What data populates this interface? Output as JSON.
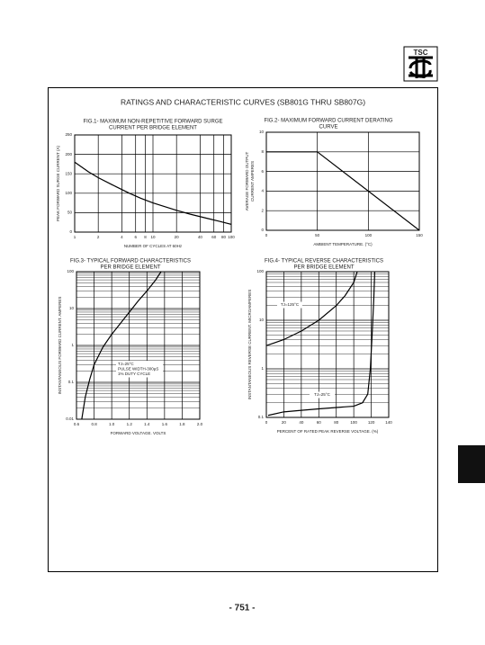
{
  "logo": "TSC",
  "title": "RATINGS AND CHARACTERISTIC CURVES (SB801G THRU SB807G)",
  "page_number": "- 751 -",
  "chart_data": [
    {
      "type": "line",
      "title": [
        "FIG.1- MAXIMUM NON-REPETITIVE FORWARD SURGE",
        "CURRENT PER BRIDGE ELEMENT"
      ],
      "x_label": "NUMBER OF CYCLES AT 60Hz",
      "y_label": [
        "PEAK FORWARD SURGE CURRENT (A)"
      ],
      "x_log": true,
      "xlim": [
        1,
        100
      ],
      "xticks": [
        1,
        2,
        4,
        6,
        8,
        10,
        20,
        40,
        60,
        80,
        100
      ],
      "ylim": [
        0,
        250
      ],
      "yticks": [
        0,
        50,
        100,
        150,
        200,
        250
      ],
      "x": [
        1,
        1.5,
        2,
        3,
        5,
        7,
        10,
        20,
        30,
        50,
        70,
        100
      ],
      "values": [
        180,
        155,
        140,
        122,
        100,
        87,
        75,
        56,
        46,
        35,
        28,
        20
      ],
      "color": "#000000",
      "grid": true
    },
    {
      "type": "line",
      "title": [
        "FIG.2- MAXIMUM FORWARD CURRENT DERATING",
        "CURVE"
      ],
      "x_label": "AMBIENT TEMPERATURE. (°C)",
      "y_label": [
        "AVERAGE FORWARD OUTPUT",
        "CURRENT AMPERES"
      ],
      "xlim": [
        0,
        150
      ],
      "xticks": [
        0,
        50,
        100,
        150
      ],
      "ylim": [
        0,
        10
      ],
      "yticks": [
        0,
        2,
        4,
        6,
        8,
        10
      ],
      "x": [
        0,
        50,
        150
      ],
      "values": [
        8,
        8,
        0
      ],
      "color": "#000000",
      "grid": true
    },
    {
      "type": "line",
      "title": [
        "FIG.3- TYPICAL FORWARD CHARACTERISTICS",
        "PER BRIDGE ELEMENT"
      ],
      "x_label": "FORWARD VOLTAGE. VOLTS",
      "y_label": [
        "INSTANTANEOUS FORWARD CURRENT. AMPERES"
      ],
      "y_log": true,
      "xlim": [
        0.6,
        2.0
      ],
      "xticks": [
        0.6,
        0.8,
        {
          "value": 1.0,
          "label": "1.0"
        },
        1.2,
        1.4,
        1.6,
        1.8,
        {
          "value": 2.0,
          "label": "2.0"
        }
      ],
      "ylim": [
        0.01,
        100
      ],
      "yticks": [
        0.01,
        0.1,
        1,
        10,
        100
      ],
      "x": [
        0.66,
        0.7,
        0.75,
        0.8,
        0.9,
        1.0,
        1.1,
        1.2,
        1.3,
        1.4,
        1.5,
        1.56
      ],
      "values": [
        0.01,
        0.04,
        0.12,
        0.3,
        0.9,
        2,
        4,
        8,
        16,
        30,
        60,
        100
      ],
      "annotation": [
        "TJ=25°C",
        "PULSE WIDTH-300µS",
        "1% DUTY CYCLE"
      ],
      "color": "#000000",
      "grid": true
    },
    {
      "type": "line",
      "title": [
        "FIG.4- TYPICAL REVERSE CHARACTERISTICS",
        "PER BRIDGE ELEMENT"
      ],
      "x_label": "PERCENT OF RATED PEAK REVERSE VOLTAGE. (%)",
      "y_label": [
        "INSTANTANEOUS REVERSE CURRENT. MICROAMPERES"
      ],
      "y_log": true,
      "xlim": [
        0,
        140
      ],
      "xticks": [
        0,
        20,
        40,
        60,
        80,
        100,
        120,
        140
      ],
      "ylim": [
        0.1,
        100
      ],
      "yticks": [
        0.1,
        1,
        10,
        100
      ],
      "series": [
        {
          "name": "TJ=125°C",
          "color": "#000000",
          "x": [
            0,
            20,
            40,
            60,
            80,
            90,
            100,
            104
          ],
          "values": [
            3,
            4,
            6,
            10,
            20,
            32,
            60,
            100
          ]
        },
        {
          "name": "TJ=25°C",
          "color": "#000000",
          "x": [
            2,
            20,
            40,
            60,
            80,
            100,
            110,
            116,
            119,
            121,
            123,
            124
          ],
          "values": [
            0.11,
            0.13,
            0.14,
            0.15,
            0.16,
            0.17,
            0.2,
            0.3,
            1,
            5,
            30,
            100
          ]
        }
      ],
      "grid": true
    }
  ]
}
